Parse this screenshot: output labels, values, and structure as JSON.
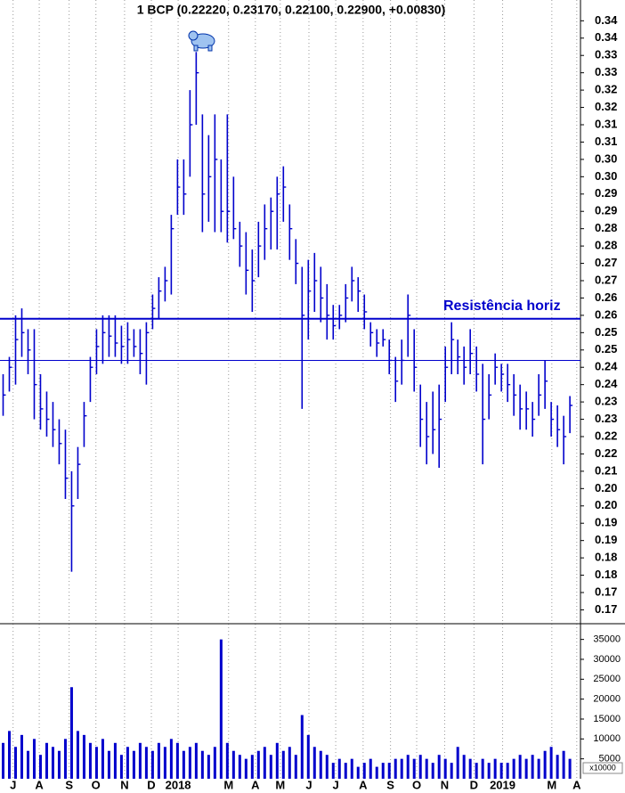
{
  "chart_data": [
    {
      "type": "ohlc",
      "title": "1 BCP (0.22220, 0.23170, 0.22100, 0.22900, +0.00830)",
      "annotation": "Resistência horiz",
      "color": "#0000cc",
      "ylim": [
        0.166,
        0.346
      ],
      "xlim": [
        -0.5,
        92.7
      ],
      "yticks": [
        0.34,
        {
          "value": 0.335,
          "label": "0.34"
        },
        0.33,
        {
          "value": 0.325,
          "label": "0.33"
        },
        0.32,
        {
          "value": 0.315,
          "label": "0.32"
        },
        0.31,
        {
          "value": 0.305,
          "label": "0.31"
        },
        {
          "value": 0.3,
          "label": "0.30"
        },
        {
          "value": 0.295,
          "label": "0.30"
        },
        0.29,
        {
          "value": 0.285,
          "label": "0.29"
        },
        0.28,
        {
          "value": 0.275,
          "label": "0.28"
        },
        0.27,
        {
          "value": 0.265,
          "label": "0.27"
        },
        0.26,
        {
          "value": 0.255,
          "label": "0.26"
        },
        0.25,
        {
          "value": 0.245,
          "label": "0.25"
        },
        0.24,
        {
          "value": 0.235,
          "label": "0.24"
        },
        0.23,
        {
          "value": 0.225,
          "label": "0.23"
        },
        0.22,
        {
          "value": 0.215,
          "label": "0.22"
        },
        0.21,
        {
          "value": 0.205,
          "label": "0.20"
        },
        {
          "value": 0.2,
          "label": "0.20"
        },
        {
          "value": 0.195,
          "label": "0.19"
        },
        0.19,
        {
          "value": 0.185,
          "label": "0.18"
        },
        0.18,
        {
          "value": 0.175,
          "label": "0.17"
        },
        0.17
      ],
      "xticks": [
        {
          "value": 1.6,
          "label": "J"
        },
        {
          "value": 5.8,
          "label": "A"
        },
        {
          "value": 10.6,
          "label": "S"
        },
        {
          "value": 14.9,
          "label": "O"
        },
        {
          "value": 19.5,
          "label": "N"
        },
        {
          "value": 23.8,
          "label": "D"
        },
        {
          "value": 28.1,
          "label": "2018"
        },
        {
          "value": 36.2,
          "label": "M"
        },
        {
          "value": 40.5,
          "label": "A"
        },
        {
          "value": 44.5,
          "label": "M"
        },
        {
          "value": 49.1,
          "label": "J"
        },
        {
          "value": 53.4,
          "label": "J"
        },
        {
          "value": 57.8,
          "label": "A"
        },
        {
          "value": 62.2,
          "label": "S"
        },
        {
          "value": 66.4,
          "label": "O"
        },
        {
          "value": 70.9,
          "label": "N"
        },
        {
          "value": 75.6,
          "label": "D"
        },
        {
          "value": 80.2,
          "label": "2019"
        },
        {
          "value": 88.1,
          "label": "M"
        },
        {
          "value": 92.1,
          "label": "A"
        }
      ],
      "hlines": [
        0.254,
        0.242
      ],
      "high": [
        0.238,
        0.243,
        0.255,
        0.257,
        0.251,
        0.251,
        0.238,
        0.233,
        0.23,
        0.225,
        0.222,
        0.21,
        0.217,
        0.23,
        0.243,
        0.251,
        0.255,
        0.255,
        0.255,
        0.252,
        0.253,
        0.251,
        0.251,
        0.253,
        0.261,
        0.266,
        0.269,
        0.284,
        0.3,
        0.3,
        0.32,
        0.331,
        0.313,
        0.307,
        0.313,
        0.3,
        0.313,
        0.295,
        0.282,
        0.279,
        0.274,
        0.282,
        0.287,
        0.289,
        0.295,
        0.298,
        0.287,
        0.277,
        0.269,
        0.271,
        0.273,
        0.269,
        0.264,
        0.258,
        0.258,
        0.264,
        0.269,
        0.266,
        0.261,
        0.253,
        0.251,
        0.251,
        0.248,
        0.243,
        0.248,
        0.261,
        0.251,
        0.235,
        0.23,
        0.233,
        0.235,
        0.246,
        0.253,
        0.248,
        0.246,
        0.251,
        0.246,
        0.241,
        0.238,
        0.244,
        0.241,
        0.241,
        0.238,
        0.235,
        0.233,
        0.23,
        0.238,
        0.242,
        0.23,
        0.229,
        0.226,
        0.2317
      ],
      "low": [
        0.226,
        0.233,
        0.235,
        0.243,
        0.238,
        0.225,
        0.222,
        0.22,
        0.217,
        0.212,
        0.202,
        0.181,
        0.202,
        0.217,
        0.23,
        0.238,
        0.241,
        0.243,
        0.243,
        0.241,
        0.241,
        0.243,
        0.238,
        0.235,
        0.251,
        0.254,
        0.259,
        0.261,
        0.284,
        0.284,
        0.295,
        0.31,
        0.279,
        0.282,
        0.279,
        0.279,
        0.276,
        0.277,
        0.269,
        0.261,
        0.256,
        0.266,
        0.271,
        0.274,
        0.274,
        0.282,
        0.271,
        0.264,
        0.228,
        0.248,
        0.256,
        0.253,
        0.248,
        0.248,
        0.251,
        0.253,
        0.259,
        0.256,
        0.251,
        0.246,
        0.243,
        0.246,
        0.238,
        0.23,
        0.235,
        0.243,
        0.233,
        0.217,
        0.212,
        0.215,
        0.211,
        0.23,
        0.238,
        0.238,
        0.235,
        0.238,
        0.233,
        0.212,
        0.225,
        0.235,
        0.233,
        0.23,
        0.226,
        0.222,
        0.222,
        0.22,
        0.226,
        0.228,
        0.22,
        0.217,
        0.212,
        0.221
      ],
      "close": [
        0.232,
        0.24,
        0.248,
        0.25,
        0.245,
        0.235,
        0.228,
        0.225,
        0.222,
        0.218,
        0.208,
        0.2,
        0.212,
        0.226,
        0.24,
        0.246,
        0.25,
        0.249,
        0.247,
        0.246,
        0.248,
        0.246,
        0.244,
        0.25,
        0.257,
        0.262,
        0.265,
        0.28,
        0.292,
        0.29,
        0.31,
        0.325,
        0.29,
        0.295,
        0.3,
        0.285,
        0.285,
        0.28,
        0.275,
        0.268,
        0.265,
        0.275,
        0.28,
        0.285,
        0.29,
        0.292,
        0.28,
        0.27,
        0.255,
        0.262,
        0.265,
        0.26,
        0.255,
        0.252,
        0.255,
        0.26,
        0.265,
        0.262,
        0.256,
        0.25,
        0.247,
        0.248,
        0.242,
        0.236,
        0.242,
        0.255,
        0.24,
        0.225,
        0.22,
        0.222,
        0.225,
        0.24,
        0.248,
        0.243,
        0.24,
        0.244,
        0.238,
        0.225,
        0.232,
        0.24,
        0.238,
        0.235,
        0.232,
        0.228,
        0.228,
        0.225,
        0.232,
        0.236,
        0.225,
        0.222,
        0.22,
        0.229
      ]
    },
    {
      "type": "bar",
      "unit_label": "x10000",
      "color": "#0000cc",
      "ylim": [
        0,
        38500
      ],
      "yticks": [
        5000,
        10000,
        15000,
        20000,
        25000,
        30000,
        35000
      ],
      "values": [
        9000,
        12000,
        8000,
        11000,
        7000,
        10000,
        6000,
        9000,
        8000,
        7000,
        10000,
        23000,
        12000,
        11000,
        9000,
        8000,
        10000,
        7000,
        9000,
        6000,
        8000,
        7000,
        9000,
        8000,
        7000,
        9000,
        8000,
        10000,
        9000,
        7000,
        8000,
        9000,
        7000,
        6000,
        8000,
        35000,
        9000,
        7000,
        6000,
        5000,
        6000,
        7000,
        8000,
        6000,
        9000,
        7000,
        8000,
        6000,
        16000,
        11000,
        8000,
        7000,
        6000,
        4000,
        5000,
        4000,
        5000,
        3000,
        4000,
        5000,
        3000,
        4000,
        4000,
        5000,
        5000,
        6000,
        5000,
        6000,
        5000,
        4000,
        6000,
        5000,
        4000,
        8000,
        6000,
        5000,
        4000,
        5000,
        4000,
        5000,
        4000,
        4000,
        5000,
        6000,
        5000,
        6000,
        5000,
        7000,
        8000,
        6000,
        7000,
        5000
      ]
    }
  ]
}
